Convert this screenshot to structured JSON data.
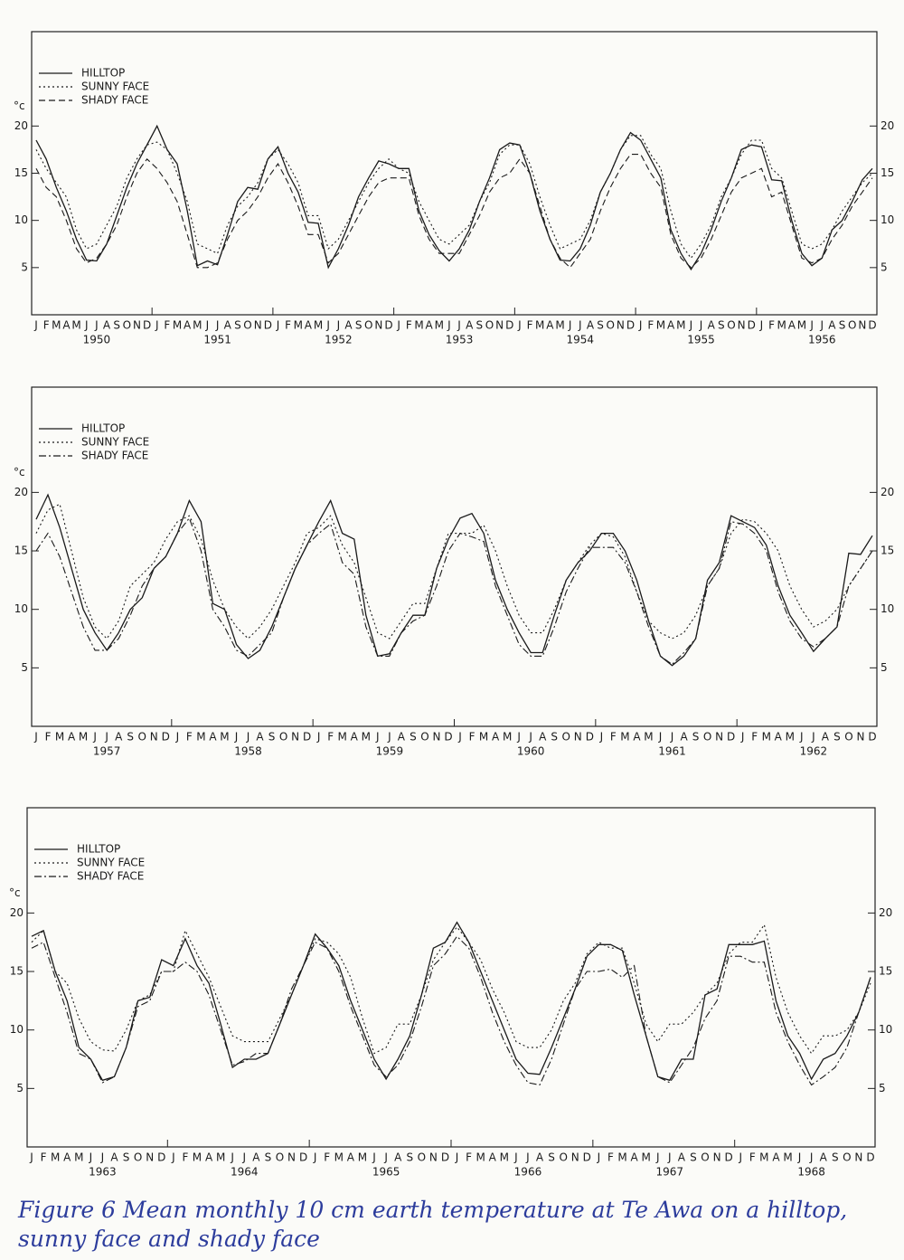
{
  "chart_data": [
    {
      "type": "line",
      "y_label": "°c",
      "categories": [
        "J",
        "F",
        "M",
        "A",
        "M",
        "J",
        "J",
        "A",
        "S",
        "O",
        "N",
        "D",
        "J",
        "F",
        "M",
        "A",
        "M",
        "J",
        "J",
        "A",
        "S",
        "O",
        "N",
        "D",
        "J",
        "F",
        "M",
        "A",
        "M",
        "J",
        "J",
        "A",
        "S",
        "O",
        "N",
        "D",
        "J",
        "F",
        "M",
        "A",
        "M",
        "J",
        "J",
        "A",
        "S",
        "O",
        "N",
        "D",
        "J",
        "F",
        "M",
        "A",
        "M",
        "J",
        "J",
        "A",
        "S",
        "O",
        "N",
        "D",
        "J",
        "F",
        "M",
        "A",
        "M",
        "J",
        "J",
        "A",
        "S",
        "O",
        "N",
        "D",
        "J",
        "F",
        "M",
        "A",
        "M",
        "J",
        "J",
        "A",
        "S",
        "O",
        "N",
        "D"
      ],
      "years": [
        "1950",
        "1951",
        "1952",
        "1953",
        "1954",
        "1955",
        "1956"
      ],
      "ylim": [
        0,
        30
      ],
      "yticks": [
        5,
        10,
        15,
        20
      ],
      "series": [
        {
          "name": "HILLTOP",
          "color": "#1a1a1a",
          "dash": "solid",
          "values": [
            18.5,
            16.5,
            13.5,
            11,
            8,
            5.8,
            5.7,
            7.5,
            10.5,
            13.5,
            16,
            18,
            20,
            17.5,
            16,
            11,
            5.2,
            5.7,
            5.3,
            8.5,
            12,
            13.5,
            13.3,
            16.5,
            17.8,
            15,
            13,
            9.8,
            9.7,
            5,
            7,
            9.5,
            12.5,
            14.5,
            16.3,
            16,
            15.5,
            15.5,
            11,
            8.5,
            6.8,
            5.7,
            7,
            9,
            12,
            14.5,
            17.5,
            18.2,
            18,
            15,
            11,
            8,
            5.8,
            5.7,
            7,
            9.5,
            13,
            15,
            17.5,
            19.3,
            18.5,
            16.5,
            14.5,
            9,
            6.5,
            4.8,
            6.5,
            9,
            12,
            14.5,
            17.5,
            18,
            17.8,
            14.3,
            14.2,
            10,
            6.5,
            5.2,
            6,
            9,
            10,
            12,
            14.3,
            15.5
          ]
        },
        {
          "name": "SUNNY FACE",
          "color": "#1a1a1a",
          "dash": "dotted",
          "values": [
            17.5,
            15.5,
            14,
            12.5,
            9,
            7,
            7.5,
            9.5,
            11.5,
            14.5,
            16.5,
            18,
            18.3,
            17.5,
            15,
            12,
            7.5,
            7,
            6.5,
            9.5,
            11.5,
            12.5,
            14,
            16.5,
            17.5,
            16,
            14,
            10.5,
            10.5,
            7,
            8,
            10,
            12,
            14,
            15.5,
            16.5,
            15.5,
            15,
            12,
            10,
            8,
            7.5,
            8.5,
            9.5,
            12,
            14,
            17,
            18,
            18,
            16,
            12.5,
            9.5,
            7,
            7.5,
            8,
            10,
            13,
            15,
            17.5,
            19,
            19,
            17,
            15.5,
            11,
            7.5,
            6,
            7.5,
            9.5,
            12.5,
            14.5,
            17,
            18.5,
            18.5,
            15.5,
            14.5,
            11,
            7.5,
            7,
            7.5,
            9,
            11,
            12.5,
            14,
            15
          ]
        },
        {
          "name": "SHADY FACE",
          "color": "#1a1a1a",
          "dash": "dashed",
          "values": [
            15.5,
            13.5,
            12.5,
            10,
            7,
            5.5,
            6,
            7.5,
            9.5,
            12.5,
            15,
            16.5,
            15.5,
            14,
            12,
            8.5,
            5,
            5,
            5.5,
            8,
            10,
            11,
            12.5,
            14.5,
            16,
            14,
            11.5,
            8.5,
            8.5,
            5.5,
            6.5,
            8.5,
            10.5,
            12.5,
            14,
            14.5,
            14.5,
            14.5,
            10.5,
            8,
            6.5,
            6.5,
            6.5,
            8.5,
            10.5,
            13,
            14.5,
            15,
            16.5,
            15,
            11.5,
            8,
            6,
            5,
            6.5,
            8,
            11,
            13.5,
            15.5,
            17,
            17,
            15,
            13.5,
            8.5,
            6,
            5,
            6,
            8,
            10.5,
            13,
            14.5,
            15,
            15.5,
            12.5,
            13,
            9.5,
            6,
            5.5,
            6,
            8,
            9.5,
            11.5,
            13,
            14.5
          ]
        }
      ]
    },
    {
      "type": "line",
      "y_label": "°c",
      "categories": [
        "J",
        "F",
        "M",
        "A",
        "M",
        "J",
        "J",
        "A",
        "S",
        "O",
        "N",
        "D",
        "J",
        "F",
        "M",
        "A",
        "M",
        "J",
        "J",
        "A",
        "S",
        "O",
        "N",
        "D",
        "J",
        "F",
        "M",
        "A",
        "M",
        "J",
        "J",
        "A",
        "S",
        "O",
        "N",
        "D",
        "J",
        "F",
        "M",
        "A",
        "M",
        "J",
        "J",
        "A",
        "S",
        "O",
        "N",
        "D",
        "J",
        "F",
        "M",
        "A",
        "M",
        "J",
        "J",
        "A",
        "S",
        "O",
        "N",
        "D",
        "J",
        "F",
        "M",
        "A",
        "M",
        "J",
        "J",
        "A",
        "S",
        "O",
        "N",
        "D"
      ],
      "years": [
        "1957",
        "1958",
        "1959",
        "1960",
        "1961",
        "1962"
      ],
      "ylim": [
        0,
        29
      ],
      "yticks": [
        5,
        10,
        15,
        20
      ],
      "series": [
        {
          "name": "HILLTOP",
          "color": "#1a1a1a",
          "dash": "solid",
          "values": [
            17.7,
            19.8,
            17,
            13.5,
            10,
            8,
            6.5,
            8,
            10,
            11,
            13.5,
            14.5,
            16.5,
            19.3,
            17.5,
            10.5,
            10,
            7,
            5.8,
            6.5,
            8.5,
            11,
            13.5,
            15.5,
            17.5,
            19.3,
            16.5,
            16,
            9.5,
            6,
            6.2,
            8,
            9.5,
            9.5,
            13.5,
            16,
            17.8,
            18.2,
            16.5,
            12.5,
            10,
            8,
            6.3,
            6.3,
            9.5,
            12.5,
            14,
            15,
            16.5,
            16.5,
            15,
            12.5,
            9,
            6,
            5.2,
            6,
            7.5,
            12.5,
            14,
            18,
            17.5,
            17,
            15.5,
            12,
            9.5,
            8,
            6.4,
            7.5,
            8.5,
            14.8,
            14.7,
            16.3
          ]
        },
        {
          "name": "SUNNY FACE",
          "color": "#1a1a1a",
          "dash": "dotted",
          "values": [
            16.5,
            18.5,
            19,
            15,
            11,
            8.5,
            7.5,
            9,
            12,
            13,
            14,
            16,
            17.5,
            18,
            16,
            12.5,
            10,
            8.5,
            7.5,
            8.5,
            10,
            12,
            14,
            16.5,
            17,
            18,
            15.5,
            14,
            11,
            8,
            7.5,
            9,
            10.5,
            10.5,
            13.5,
            16.5,
            16.5,
            16.5,
            17.2,
            15,
            12,
            9.5,
            8,
            8,
            10,
            12.5,
            14,
            15.5,
            16.5,
            16.2,
            14.5,
            11.5,
            9,
            8,
            7.5,
            8,
            9.5,
            12,
            13.5,
            16.5,
            17.7,
            17.5,
            16.5,
            15,
            12,
            10,
            8.5,
            9,
            10,
            12,
            13.5,
            15
          ]
        },
        {
          "name": "SHADY FACE",
          "color": "#1a1a1a",
          "dash": "dashdot",
          "values": [
            15,
            16.5,
            14.5,
            11.5,
            8.5,
            6.5,
            6.5,
            7.5,
            9.5,
            12,
            13.5,
            14.5,
            16.5,
            17.8,
            15,
            10,
            8.5,
            6.5,
            6,
            7,
            8,
            11,
            13.5,
            15.5,
            16.5,
            17.3,
            14,
            13,
            8.5,
            6,
            6,
            8,
            9,
            9.5,
            12,
            15,
            16.5,
            16.2,
            15.8,
            12,
            9.5,
            7,
            6,
            6,
            8.5,
            11.5,
            13.5,
            15.3,
            15.3,
            15.3,
            14,
            11.5,
            8.5,
            6,
            5.3,
            6.3,
            7.5,
            12,
            13.5,
            17.5,
            17.3,
            16.5,
            15,
            11.5,
            9,
            7.5,
            6.8,
            7.5,
            8.5,
            12,
            13.5,
            15
          ]
        }
      ]
    },
    {
      "type": "line",
      "y_label": "°c",
      "categories": [
        "J",
        "F",
        "M",
        "A",
        "M",
        "J",
        "J",
        "A",
        "S",
        "O",
        "N",
        "D",
        "J",
        "F",
        "M",
        "A",
        "M",
        "J",
        "J",
        "A",
        "S",
        "O",
        "N",
        "D",
        "J",
        "F",
        "M",
        "A",
        "M",
        "J",
        "J",
        "A",
        "S",
        "O",
        "N",
        "D",
        "J",
        "F",
        "M",
        "A",
        "M",
        "J",
        "J",
        "A",
        "S",
        "O",
        "N",
        "D",
        "J",
        "F",
        "M",
        "A",
        "M",
        "J",
        "J",
        "A",
        "S",
        "O",
        "N",
        "D",
        "J",
        "F",
        "M",
        "A",
        "M",
        "J",
        "J",
        "A",
        "S",
        "O",
        "N",
        "D"
      ],
      "years": [
        "1963",
        "1964",
        "1965",
        "1966",
        "1967",
        "1968"
      ],
      "ylim": [
        0,
        29
      ],
      "yticks": [
        5,
        10,
        15,
        20
      ],
      "series": [
        {
          "name": "HILLTOP",
          "color": "#1a1a1a",
          "dash": "solid",
          "values": [
            18,
            18.5,
            15,
            12.5,
            8.5,
            7.5,
            5.7,
            6,
            8.5,
            12.5,
            12.8,
            16,
            15.5,
            17.8,
            15.5,
            14,
            10.5,
            6.8,
            7.5,
            7.5,
            8,
            10.5,
            13,
            15.5,
            18.2,
            17,
            15.5,
            12.5,
            10,
            7.5,
            5.8,
            7.5,
            9.5,
            13,
            17,
            17.5,
            19.2,
            17.5,
            15,
            12.5,
            10,
            7.5,
            6.3,
            6.2,
            8.5,
            11,
            13.5,
            16.3,
            17.3,
            17.3,
            16.8,
            13,
            9.5,
            6,
            5.7,
            7.5,
            7.5,
            13,
            13.5,
            17.3,
            17.3,
            17.3,
            17.6,
            12.5,
            9.5,
            8,
            5.8,
            7.5,
            8,
            9.5,
            11.5,
            14.5
          ]
        },
        {
          "name": "SUNNY FACE",
          "color": "#1a1a1a",
          "dash": "dotted",
          "values": [
            17.5,
            18.5,
            15,
            14,
            11,
            9,
            8.3,
            8.2,
            10,
            12.5,
            13,
            15,
            15,
            18.5,
            16.5,
            14.5,
            12,
            9.5,
            9,
            9,
            9,
            11,
            13,
            15.5,
            17.8,
            17.5,
            16.5,
            14.5,
            11,
            8,
            8.5,
            10.5,
            10.5,
            13,
            16,
            17.5,
            18.8,
            17.5,
            16,
            13.5,
            11.5,
            9,
            8.5,
            8.5,
            10,
            12.5,
            14,
            16.5,
            17.5,
            17,
            17,
            14,
            10.5,
            9,
            10.5,
            10.5,
            11.5,
            13,
            14,
            16.5,
            17.5,
            17.5,
            19,
            14.5,
            11.5,
            9.5,
            8,
            9.5,
            9.5,
            10,
            11.5,
            14
          ]
        },
        {
          "name": "SHADY FACE",
          "color": "#1a1a1a",
          "dash": "dashdot",
          "values": [
            17,
            17.5,
            14.5,
            11.5,
            8,
            7.5,
            5.5,
            6,
            8.5,
            12,
            12.5,
            15,
            15,
            15.8,
            15,
            13,
            10,
            7,
            7.3,
            8,
            8,
            10.5,
            13.5,
            15.5,
            17.5,
            17,
            15,
            12,
            9.5,
            7,
            6,
            7,
            9,
            12,
            15.5,
            16.5,
            18,
            17,
            14.5,
            11.5,
            9,
            7,
            5.5,
            5.3,
            7.5,
            10.5,
            13.5,
            15,
            15,
            15.2,
            14.5,
            15.5,
            9.5,
            6,
            5.5,
            7,
            8.5,
            11,
            12.5,
            16.3,
            16.3,
            15.8,
            15.8,
            11.5,
            9,
            7,
            5.3,
            6,
            6.8,
            8.5,
            11.5,
            14.5
          ]
        }
      ]
    }
  ],
  "caption": "Figure 6   Mean monthly 10 cm earth temperature at Te Awa on a hilltop, sunny face and shady face"
}
